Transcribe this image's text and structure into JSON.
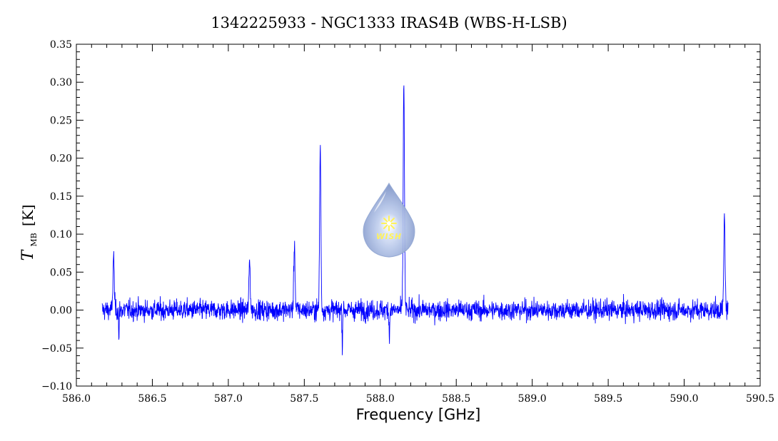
{
  "chart_data": {
    "type": "line",
    "title": "1342225933 - NGC1333 IRAS4B (WBS-H-LSB)",
    "xlabel": "Frequency [GHz]",
    "ylabel_main": "T",
    "ylabel_sub": "MB",
    "ylabel_unit": "[K]",
    "xlim": [
      586.0,
      590.5
    ],
    "ylim": [
      -0.1,
      0.35
    ],
    "xticks": [
      586.0,
      586.5,
      587.0,
      587.5,
      588.0,
      588.5,
      589.0,
      589.5,
      590.0,
      590.5
    ],
    "xtick_labels": [
      "586.0",
      "586.5",
      "587.0",
      "587.5",
      "588.0",
      "588.5",
      "589.0",
      "589.5",
      "590.0",
      "590.5"
    ],
    "yticks": [
      -0.1,
      -0.05,
      0.0,
      0.05,
      0.1,
      0.15,
      0.2,
      0.25,
      0.3,
      0.35
    ],
    "ytick_labels": [
      "−0.10",
      "−0.05",
      "0.00",
      "0.05",
      "0.10",
      "0.15",
      "0.20",
      "0.25",
      "0.30",
      "0.35"
    ],
    "grid": false,
    "line_color": "#0000ff",
    "series": [
      {
        "x_range": [
          586.17,
          590.29
        ],
        "noise_rms": 0.012,
        "peaks": [
          {
            "x": 586.245,
            "y": 0.072
          },
          {
            "x": 587.14,
            "y": 0.065
          },
          {
            "x": 587.435,
            "y": 0.088
          },
          {
            "x": 587.605,
            "y": 0.217
          },
          {
            "x": 588.155,
            "y": 0.3
          },
          {
            "x": 590.265,
            "y": 0.125
          }
        ],
        "dips": [
          {
            "x": 587.75,
            "y": -0.053
          },
          {
            "x": 588.06,
            "y": -0.046
          },
          {
            "x": 586.28,
            "y": -0.043
          }
        ]
      }
    ]
  },
  "logo": {
    "text": "WISH",
    "drop_color": "#9db1d9",
    "star_color": "#fff25a"
  }
}
